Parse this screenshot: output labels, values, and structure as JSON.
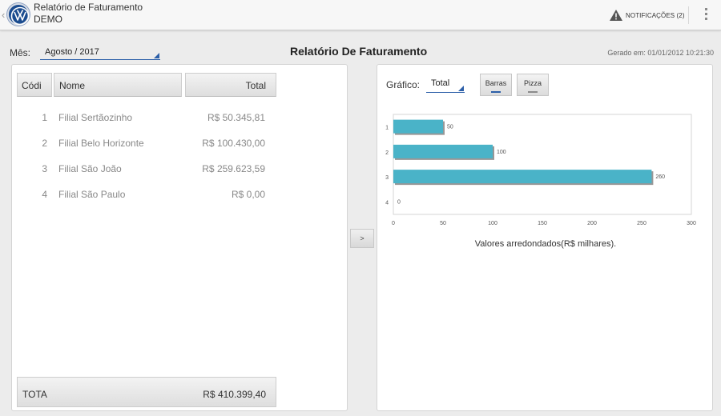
{
  "app": {
    "title": "Relatório de Faturamento",
    "subtitle": "DEMO",
    "notifications_label": "NOTIFICAÇÕES (2)"
  },
  "filters": {
    "month_label": "Mês:",
    "month_value": "Agosto / 2017"
  },
  "report": {
    "title": "Relatório De Faturamento",
    "generated": "Gerado em: 01/01/2012 10:21:30"
  },
  "table": {
    "headers": {
      "code": "Códi",
      "name": "Nome",
      "total": "Total"
    },
    "rows": [
      {
        "code": "1",
        "name": "Filial Sertãozinho",
        "total": "R$ 50.345,81"
      },
      {
        "code": "2",
        "name": "Filial Belo Horizonte",
        "total": "R$ 100.430,00"
      },
      {
        "code": "3",
        "name": "Filial São João",
        "total": "R$ 259.623,59"
      },
      {
        "code": "4",
        "name": "Filial São Paulo",
        "total": "R$ 0,00"
      }
    ],
    "footer": {
      "label": "TOTA",
      "total": "R$ 410.399,40"
    }
  },
  "toggle_label": ">",
  "chart_controls": {
    "label": "Gráfico:",
    "selected": "Total",
    "bars_label": "Barras",
    "pie_label": "Pizza"
  },
  "icons": {
    "back": "chevron-left-icon",
    "logo": "vw-logo",
    "notifications": "warning-icon",
    "overflow": "overflow-menu-icon"
  },
  "colors": {
    "accent": "#2c5fa8",
    "bar": "#4ab3c8",
    "bar_shadow": "#6b6b6b"
  },
  "chart_data": {
    "type": "bar",
    "orientation": "horizontal",
    "categories": [
      "1",
      "2",
      "3",
      "4"
    ],
    "values": [
      50,
      100,
      260,
      0
    ],
    "data_labels": [
      "50",
      "100",
      "260",
      "0"
    ],
    "xlim": [
      0,
      300
    ],
    "xticks": [
      0,
      50,
      100,
      150,
      200,
      250,
      300
    ],
    "xlabel": "Valores arredondados(R$ milhares).",
    "grid": false,
    "legend": "none"
  }
}
